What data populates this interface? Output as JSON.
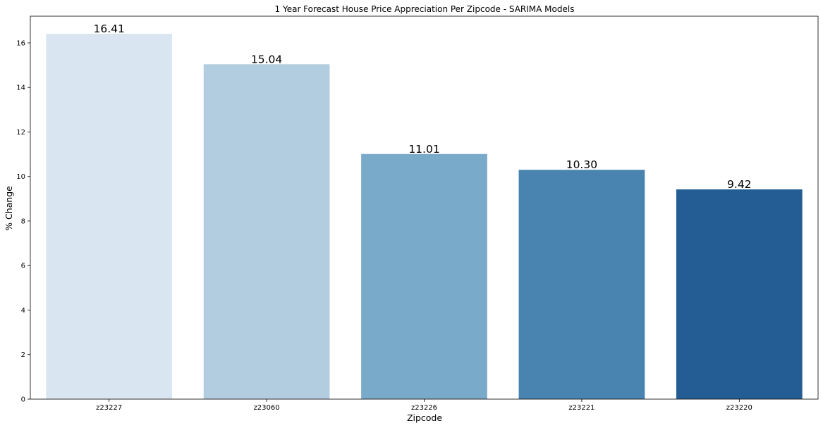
{
  "chart_data": {
    "type": "bar",
    "title": "1 Year Forecast House Price Appreciation Per Zipcode -  SARIMA Models",
    "xlabel": "Zipcode",
    "ylabel": "% Change",
    "categories": [
      "z23227",
      "z23060",
      "z23226",
      "z23221",
      "z23220"
    ],
    "values": [
      16.41,
      15.04,
      11.01,
      10.3,
      9.42
    ],
    "value_labels": [
      "16.41",
      "15.04",
      "11.01",
      "10.30",
      "9.42"
    ],
    "colors": [
      "#d9e6f2",
      "#b3cde0",
      "#7aaac9",
      "#4984b1",
      "#235d93"
    ],
    "ylim": [
      0,
      17.2
    ],
    "yticks": [
      0,
      2,
      4,
      6,
      8,
      10,
      12,
      14,
      16
    ],
    "grid": false,
    "legend": "none"
  }
}
